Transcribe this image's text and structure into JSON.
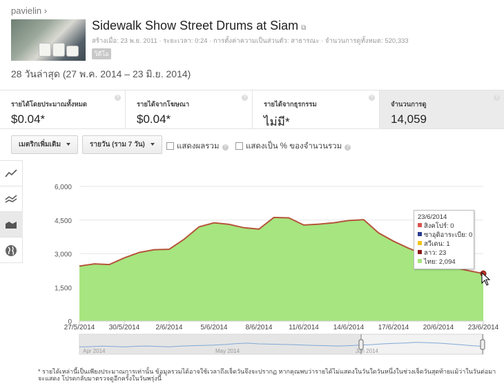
{
  "breadcrumb": "pavielin ›",
  "video": {
    "title": "Sidewalk Show Street Drums at Siam",
    "external_icon": "external-link-icon",
    "meta": "สร้างเมื่อ: 23 พ.ย. 2011 · ระยะเวลา: 0:24 · การตั้งค่าความเป็นส่วนตัว: สาธารณะ · จำนวนการดูทั้งหมด: 520,333",
    "tag": "วิดีโอ"
  },
  "date_range": "28 วันล่าสุด (27 พ.ค. 2014 – 23 มิ.ย. 2014)",
  "metrics": [
    {
      "label": "รายได้โดยประมาณทั้งหมด",
      "value": "$0.04*"
    },
    {
      "label": "รายได้จากโฆษณา",
      "value": "$0.04*"
    },
    {
      "label": "รายได้จากธุรกรรม",
      "value": "ไม่มี*"
    },
    {
      "label": "จำนวนการดู",
      "value": "14,059",
      "selected": true
    }
  ],
  "controls": {
    "metric_dropdown": "เมตริกเพิ่มเติม",
    "period_dropdown": "รายวัน (ราม 7 วัน)",
    "show_total": "แสดงผลรวม",
    "show_percent": "แสดงเป็น % ของจำนวนรวม"
  },
  "chart_icons": [
    "line-chart-icon",
    "multi-line-chart-icon",
    "area-chart-icon",
    "globe-map-icon"
  ],
  "chart_data": {
    "type": "area",
    "ylim": [
      0,
      6000
    ],
    "yticks": [
      "0",
      "1,500",
      "3,000",
      "4,500",
      "6,000"
    ],
    "xticks": [
      "27/5/2014",
      "30/5/2014",
      "2/6/2014",
      "5/6/2014",
      "8/6/2014",
      "11/6/2014",
      "14/6/2014",
      "17/6/2014",
      "20/6/2014",
      "23/6/2014"
    ],
    "x": [
      "27/5",
      "28/5",
      "29/5",
      "30/5",
      "31/5",
      "1/6",
      "2/6",
      "3/6",
      "4/6",
      "5/6",
      "6/6",
      "7/6",
      "8/6",
      "9/6",
      "10/6",
      "11/6",
      "12/6",
      "13/6",
      "14/6",
      "15/6",
      "16/6",
      "17/6",
      "18/6",
      "19/6",
      "20/6",
      "21/6",
      "22/6",
      "23/6"
    ],
    "values": [
      2450,
      2550,
      2520,
      2820,
      3060,
      3180,
      3200,
      3650,
      4200,
      4380,
      4310,
      4160,
      4100,
      4620,
      4600,
      4280,
      4320,
      4380,
      4480,
      4520,
      3930,
      3560,
      3250,
      2980,
      2650,
      2400,
      2250,
      2118
    ],
    "fill_color": "#a6e580",
    "line_color": "#b5553a",
    "navigator_labels": [
      "Apr 2014",
      "May 2014",
      "Jun 2014"
    ]
  },
  "tooltip": {
    "date": "23/6/2014",
    "rows": [
      {
        "label": "สิงคโปร์: 0",
        "color": "#d9534f"
      },
      {
        "label": "ซาอุดิอาระเบีย: 0",
        "color": "#2b3d8f"
      },
      {
        "label": "สวีเดน: 1",
        "color": "#f0c419"
      },
      {
        "label": "ลาว: 23",
        "color": "#8b1a1a"
      },
      {
        "label": "ไทย: 2,094",
        "color": "#a6e580"
      }
    ]
  },
  "footnote": "* รายได้เหล่านี้เป็นเพียงประมาณการเท่านั้น ข้อมูลรวมได้อาจใช้เวลาถึงเจ็ดวันจึงจะปรากฏ หากคุณพบว่ารายได้ไม่แสดงในวันใดวันหนึ่งในช่วงเจ็ดวันสุดท้ายแม้ว่าในวันต่อมาจะแสดง โปรดกลับมาตรวจดูอีกครั้งในวันพรุ่งนี้"
}
